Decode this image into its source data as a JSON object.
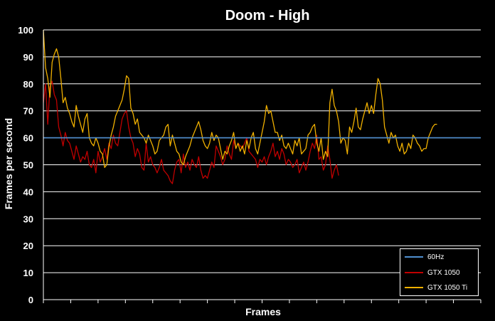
{
  "chart_data": {
    "type": "line",
    "title": "Doom - High",
    "xlabel": "Frames",
    "ylabel": "Frames per second",
    "ylim": [
      0,
      100
    ],
    "yticks": [
      "0",
      "10",
      "20",
      "30",
      "40",
      "50",
      "60",
      "70",
      "80",
      "90",
      "100"
    ],
    "grid": true,
    "legend_position": "bottom-right",
    "reference_line": {
      "name": "60Hz",
      "value": 60,
      "color": "#4f8fd0"
    },
    "series": [
      {
        "name": "GTX 1050",
        "color": "#c00000",
        "x_end": 135,
        "values": [
          73,
          80,
          65,
          79,
          81,
          76,
          74,
          64,
          61,
          57,
          62,
          59,
          58,
          55,
          52,
          57,
          54,
          51,
          53,
          52,
          55,
          50,
          49,
          52,
          47,
          55,
          51,
          53,
          56,
          52,
          58,
          56,
          61,
          58,
          57,
          62,
          67,
          69,
          70,
          64,
          60,
          58,
          53,
          56,
          54,
          49,
          48,
          58,
          51,
          53,
          50,
          49,
          47,
          49,
          52,
          48,
          47,
          46,
          44,
          43,
          48,
          51,
          52,
          47,
          54,
          49,
          51,
          48,
          52,
          50,
          49,
          53,
          48,
          45,
          46,
          45,
          48,
          51,
          49,
          57,
          55,
          53,
          50,
          52,
          57,
          54,
          52,
          59,
          56,
          58,
          57,
          56,
          58,
          60,
          55,
          54,
          53,
          52,
          49,
          52,
          51,
          53,
          50,
          53,
          55,
          58,
          53,
          55,
          52,
          56,
          54,
          50,
          52,
          51,
          49,
          50,
          52,
          47,
          49,
          51,
          48,
          51,
          55,
          58,
          56,
          61,
          52,
          53,
          48,
          50,
          57,
          52,
          45,
          48,
          50,
          46
        ]
      },
      {
        "name": "GTX 1050 Ti",
        "color": "#f0b000",
        "x_end": 180,
        "values": [
          100,
          86,
          82,
          75,
          88,
          91,
          93,
          90,
          82,
          73,
          75,
          71,
          69,
          66,
          64,
          72,
          68,
          65,
          62,
          67,
          69,
          60,
          58,
          57,
          60,
          58,
          55,
          54,
          49,
          50,
          57,
          61,
          64,
          68,
          70,
          72,
          74,
          78,
          83,
          82,
          71,
          69,
          65,
          67,
          62,
          61,
          60,
          58,
          61,
          59,
          57,
          54,
          55,
          59,
          60,
          61,
          64,
          65,
          57,
          61,
          58,
          55,
          54,
          51,
          50,
          53,
          55,
          57,
          60,
          62,
          64,
          66,
          63,
          59,
          57,
          56,
          58,
          62,
          59,
          61,
          60,
          56,
          52,
          55,
          54,
          57,
          59,
          62,
          56,
          58,
          55,
          57,
          54,
          59,
          56,
          60,
          62,
          56,
          54,
          58,
          62,
          66,
          72,
          69,
          70,
          66,
          62,
          62,
          59,
          61,
          57,
          56,
          58,
          56,
          54,
          59,
          57,
          60,
          54,
          55,
          56,
          61,
          62,
          64,
          65,
          58,
          55,
          60,
          52,
          55,
          53,
          73,
          78,
          72,
          70,
          66,
          58,
          60,
          59,
          54,
          64,
          62,
          66,
          71,
          64,
          63,
          67,
          70,
          73,
          69,
          72,
          69,
          76,
          82,
          80,
          74,
          64,
          61,
          58,
          62,
          60,
          61,
          57,
          55,
          58,
          54,
          55,
          58,
          56,
          61,
          60,
          58,
          57,
          55,
          56,
          56,
          60,
          62,
          64,
          65,
          65
        ]
      }
    ],
    "legend": [
      {
        "label": "60Hz",
        "color": "#4f8fd0"
      },
      {
        "label": "GTX 1050",
        "color": "#c00000"
      },
      {
        "label": "GTX 1050 Ti",
        "color": "#f0b000"
      }
    ]
  }
}
